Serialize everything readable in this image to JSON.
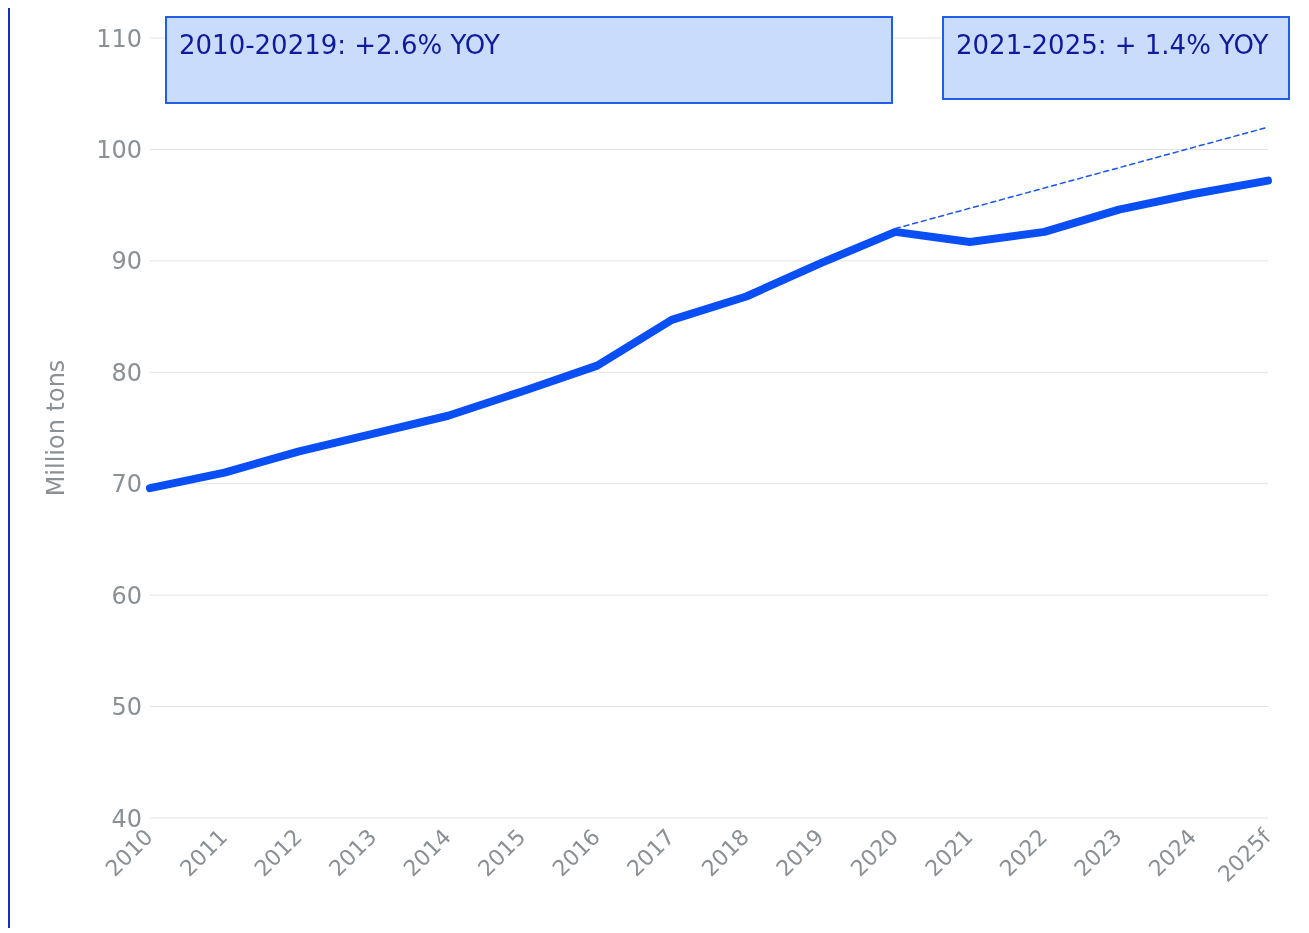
{
  "chart_data": {
    "type": "line",
    "ylabel": "Million tons",
    "categories": [
      "2010",
      "2011",
      "2012",
      "2013",
      "2014",
      "2015",
      "2016",
      "2017",
      "2018",
      "2019",
      "2020",
      "2021",
      "2022",
      "2023",
      "2024",
      "2025f"
    ],
    "series": [
      {
        "color": "#0a4ff5",
        "values": [
          69.6,
          71.0,
          72.9,
          74.5,
          76.1,
          78.3,
          80.6,
          84.7,
          86.8,
          89.8,
          92.6,
          91.7,
          92.6,
          94.6,
          96.0,
          97.2
        ],
        "line_style": "solid"
      },
      {
        "color": "#1a56e8",
        "values": [
          null,
          null,
          null,
          null,
          null,
          null,
          null,
          null,
          null,
          null,
          92.9,
          null,
          null,
          null,
          null,
          102.0
        ],
        "line_style": "dashed"
      }
    ],
    "ylim": [
      40,
      110
    ],
    "yticks": [
      40,
      50,
      60,
      70,
      80,
      90,
      100,
      110
    ],
    "grid": "y",
    "marker": "none",
    "annotations": [
      "2010-20219:  +2.6% YOY",
      "2021-2025: + 1.4% YOY"
    ]
  }
}
